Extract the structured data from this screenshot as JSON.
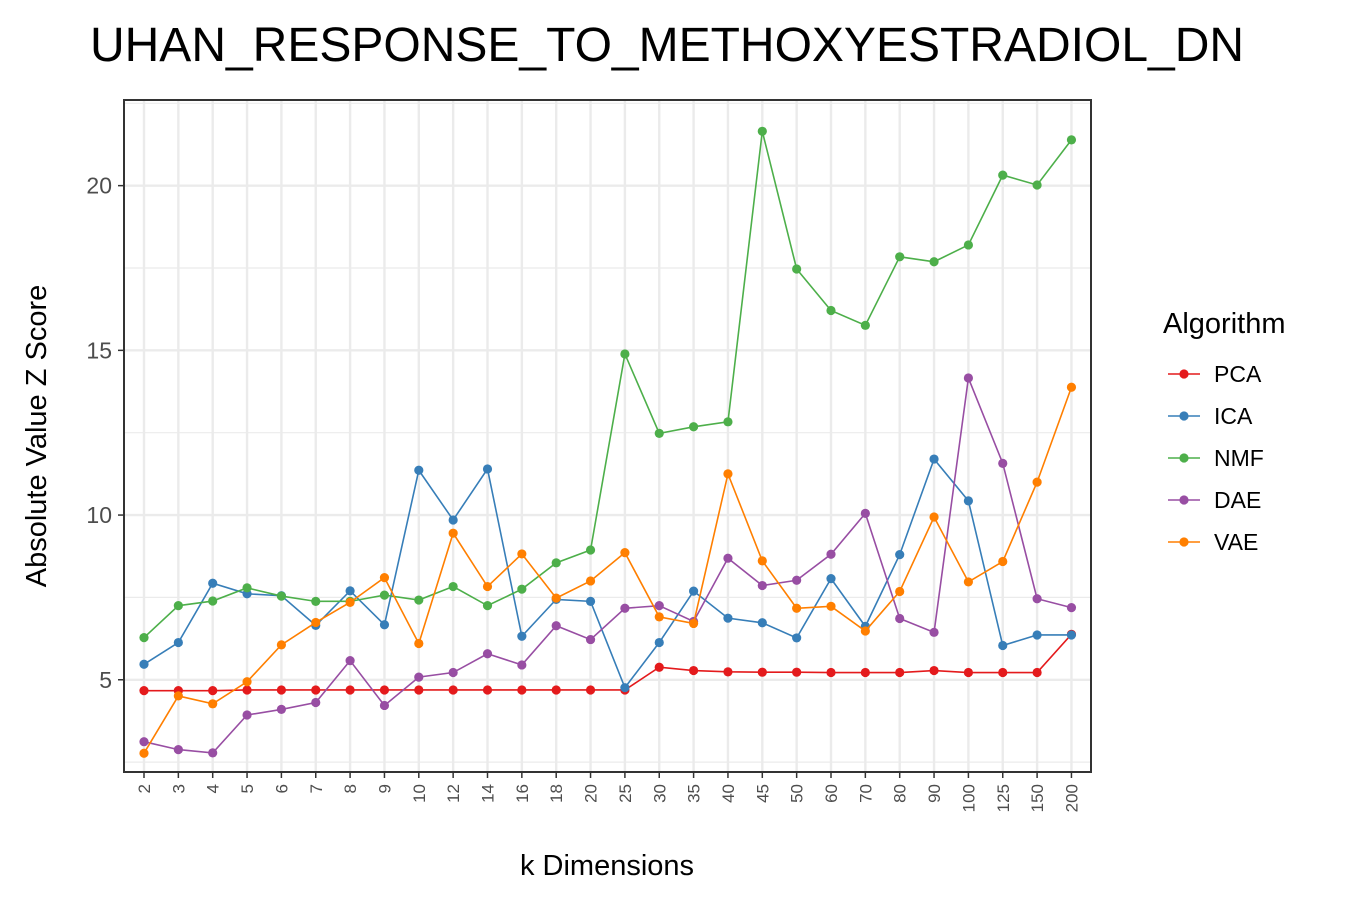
{
  "chart_data": {
    "type": "line",
    "title": "UHAN_RESPONSE_TO_METHOXYESTRADIOL_DN",
    "xlabel": "k Dimensions",
    "ylabel": "Absolute Value Z Score",
    "x_categories": [
      "2",
      "3",
      "4",
      "5",
      "6",
      "7",
      "8",
      "9",
      "10",
      "12",
      "14",
      "16",
      "18",
      "20",
      "25",
      "30",
      "35",
      "40",
      "45",
      "50",
      "60",
      "70",
      "80",
      "90",
      "100",
      "125",
      "150",
      "200"
    ],
    "y_ticks": [
      5,
      10,
      15,
      20
    ],
    "ylim": [
      2.2,
      22.6
    ],
    "grid": true,
    "legend": {
      "title": "Algorithm",
      "position": "right"
    },
    "series": [
      {
        "name": "PCA",
        "color": "#e41a1c",
        "values": [
          4.67,
          4.67,
          4.67,
          4.69,
          4.69,
          4.69,
          4.69,
          4.69,
          4.69,
          4.69,
          4.69,
          4.69,
          4.69,
          4.69,
          4.69,
          5.38,
          5.28,
          5.24,
          5.23,
          5.23,
          5.22,
          5.22,
          5.22,
          5.28,
          5.22,
          5.22,
          5.22,
          6.38
        ]
      },
      {
        "name": "ICA",
        "color": "#377eb8",
        "values": [
          5.47,
          6.13,
          7.93,
          7.61,
          7.55,
          6.65,
          7.7,
          6.67,
          11.36,
          9.85,
          11.4,
          6.32,
          7.44,
          7.38,
          4.76,
          6.13,
          7.69,
          6.87,
          6.73,
          6.27,
          8.07,
          6.62,
          8.8,
          11.7,
          10.43,
          6.04,
          6.36,
          6.36
        ]
      },
      {
        "name": "NMF",
        "color": "#4daf4a",
        "values": [
          6.28,
          7.25,
          7.39,
          7.79,
          7.54,
          7.38,
          7.38,
          7.57,
          7.42,
          7.83,
          7.25,
          7.75,
          8.55,
          8.94,
          14.89,
          12.48,
          12.68,
          12.83,
          21.65,
          17.47,
          16.21,
          15.76,
          17.84,
          17.69,
          18.2,
          20.32,
          20.02,
          21.39
        ]
      },
      {
        "name": "DAE",
        "color": "#984ea3",
        "values": [
          3.12,
          2.88,
          2.78,
          3.93,
          4.1,
          4.31,
          5.58,
          4.22,
          5.08,
          5.22,
          5.79,
          5.45,
          6.64,
          6.22,
          7.17,
          7.25,
          6.77,
          8.69,
          7.86,
          8.02,
          8.81,
          10.05,
          6.86,
          6.44,
          14.16,
          11.57,
          7.46,
          7.19
        ]
      },
      {
        "name": "VAE",
        "color": "#ff7f00",
        "values": [
          2.77,
          4.51,
          4.27,
          4.94,
          6.06,
          6.74,
          7.35,
          8.1,
          6.1,
          9.45,
          7.83,
          8.82,
          7.48,
          8.0,
          8.86,
          6.91,
          6.71,
          11.25,
          8.61,
          7.17,
          7.23,
          6.48,
          7.68,
          9.94,
          7.97,
          8.59,
          11.0,
          13.88
        ]
      }
    ]
  }
}
